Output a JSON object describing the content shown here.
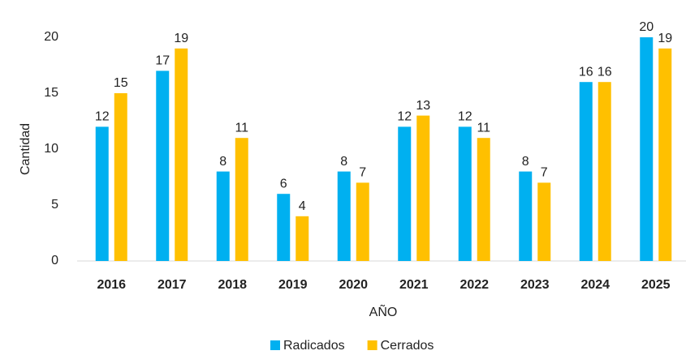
{
  "chart_data": {
    "type": "bar",
    "x_label": "AÑO",
    "y_label": "Cantidad",
    "categories": [
      "2016",
      "2017",
      "2018",
      "2019",
      "2020",
      "2021",
      "2022",
      "2023",
      "2024",
      "2025"
    ],
    "series": [
      {
        "name": "Radicados",
        "color": "#00b0f0",
        "values": [
          12,
          17,
          8,
          6,
          8,
          12,
          12,
          8,
          16,
          20
        ]
      },
      {
        "name": "Cerrados",
        "color": "#ffc000",
        "values": [
          15,
          19,
          11,
          4,
          7,
          13,
          11,
          7,
          16,
          19
        ]
      }
    ],
    "ylim": [
      0,
      20
    ],
    "yticks": [
      0,
      5,
      10,
      15,
      20
    ],
    "grid": false,
    "legend": "bottom"
  }
}
